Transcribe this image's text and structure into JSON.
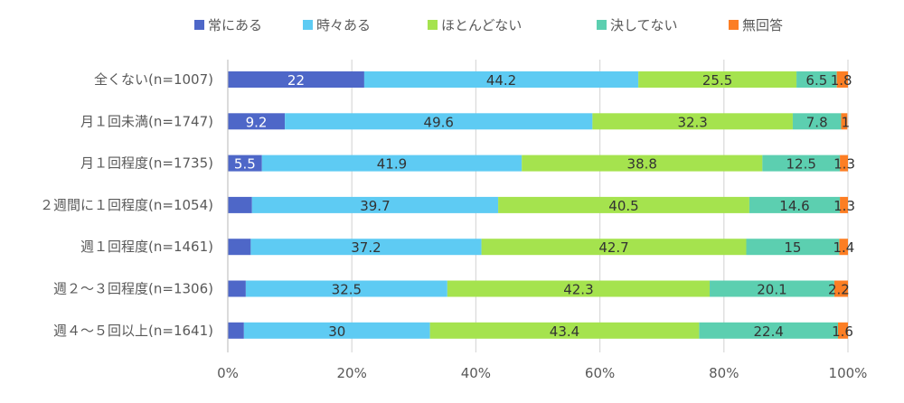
{
  "chart_data": {
    "type": "bar",
    "orientation": "horizontal",
    "stacked": "percent",
    "categories": [
      "全くない(n=1007)",
      "月１回未満(n=1747)",
      "月１回程度(n=1735)",
      "２週間に１回程度(n=1054)",
      "週１回程度(n=1461)",
      "週２～３回程度(n=1306)",
      "週４～５回以上(n=1641)"
    ],
    "series": [
      {
        "name": "常にある",
        "color": "#4e67c8",
        "values": [
          22.0,
          9.2,
          5.5,
          3.9,
          3.7,
          2.9,
          2.6
        ]
      },
      {
        "name": "時々ある",
        "color": "#5ecbf3",
        "values": [
          44.2,
          49.6,
          41.9,
          39.7,
          37.2,
          32.5,
          30.0
        ]
      },
      {
        "name": "ほとんどない",
        "color": "#a5e34e",
        "values": [
          25.5,
          32.3,
          38.8,
          40.5,
          42.7,
          42.3,
          43.4
        ]
      },
      {
        "name": "決してない",
        "color": "#5ccfb0",
        "values": [
          6.5,
          7.8,
          12.5,
          14.6,
          15.0,
          20.1,
          22.4
        ]
      },
      {
        "name": "無回答",
        "color": "#fc7e24",
        "values": [
          1.8,
          1.0,
          1.3,
          1.3,
          1.4,
          2.2,
          1.6
        ]
      }
    ],
    "xlim": [
      0,
      100
    ],
    "xticks": [
      "0%",
      "20%",
      "40%",
      "60%",
      "80%",
      "100%"
    ],
    "grid": true,
    "legend": "top"
  }
}
